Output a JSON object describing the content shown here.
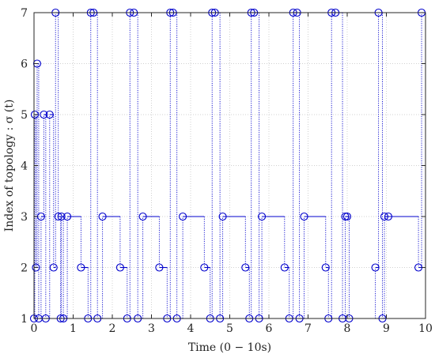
{
  "chart_data": {
    "type": "line",
    "style": "stairs",
    "xlabel": "Time (0 − 10s)",
    "ylabel": "Index of topology : σ (t)",
    "xlim": [
      0,
      10
    ],
    "ylim": [
      1,
      7
    ],
    "xticks": [
      "0",
      "1",
      "2",
      "3",
      "4",
      "5",
      "6",
      "7",
      "8",
      "9",
      "10"
    ],
    "yticks": [
      "1",
      "2",
      "3",
      "4",
      "5",
      "6",
      "7"
    ],
    "grid": true,
    "colors": {
      "series": "#0000cc",
      "axes": "#262626",
      "grid": "#d0d0d0"
    },
    "series": [
      {
        "marker": "circle",
        "x": [
          0,
          0.02,
          0.05,
          0.08,
          0.12,
          0.18,
          0.25,
          0.3,
          0.4,
          0.5,
          0.55,
          0.62,
          0.68,
          0.7,
          0.75,
          0.85,
          1.2,
          1.38,
          1.45,
          1.52,
          1.62,
          1.75,
          2.2,
          2.38,
          2.45,
          2.55,
          2.65,
          2.78,
          3.2,
          3.4,
          3.48,
          3.55,
          3.65,
          3.8,
          4.35,
          4.5,
          4.55,
          4.62,
          4.75,
          4.82,
          5.4,
          5.5,
          5.55,
          5.62,
          5.75,
          5.82,
          6.4,
          6.52,
          6.62,
          6.72,
          6.78,
          6.9,
          7.45,
          7.52,
          7.6,
          7.7,
          7.88,
          7.95,
          8.0,
          8.05,
          8.72,
          8.8,
          8.9,
          8.95,
          9.05,
          9.82,
          9.9
        ],
        "y": [
          1,
          5,
          2,
          6,
          1,
          3,
          5,
          1,
          5,
          2,
          7,
          3,
          1,
          3,
          1,
          3,
          2,
          1,
          7,
          7,
          1,
          3,
          2,
          1,
          7,
          7,
          1,
          3,
          2,
          1,
          7,
          7,
          1,
          3,
          2,
          1,
          7,
          7,
          1,
          3,
          2,
          1,
          7,
          7,
          1,
          3,
          2,
          1,
          7,
          7,
          1,
          3,
          2,
          1,
          7,
          7,
          1,
          3,
          3,
          1,
          2,
          7,
          1,
          3,
          3,
          2,
          7
        ]
      }
    ]
  }
}
